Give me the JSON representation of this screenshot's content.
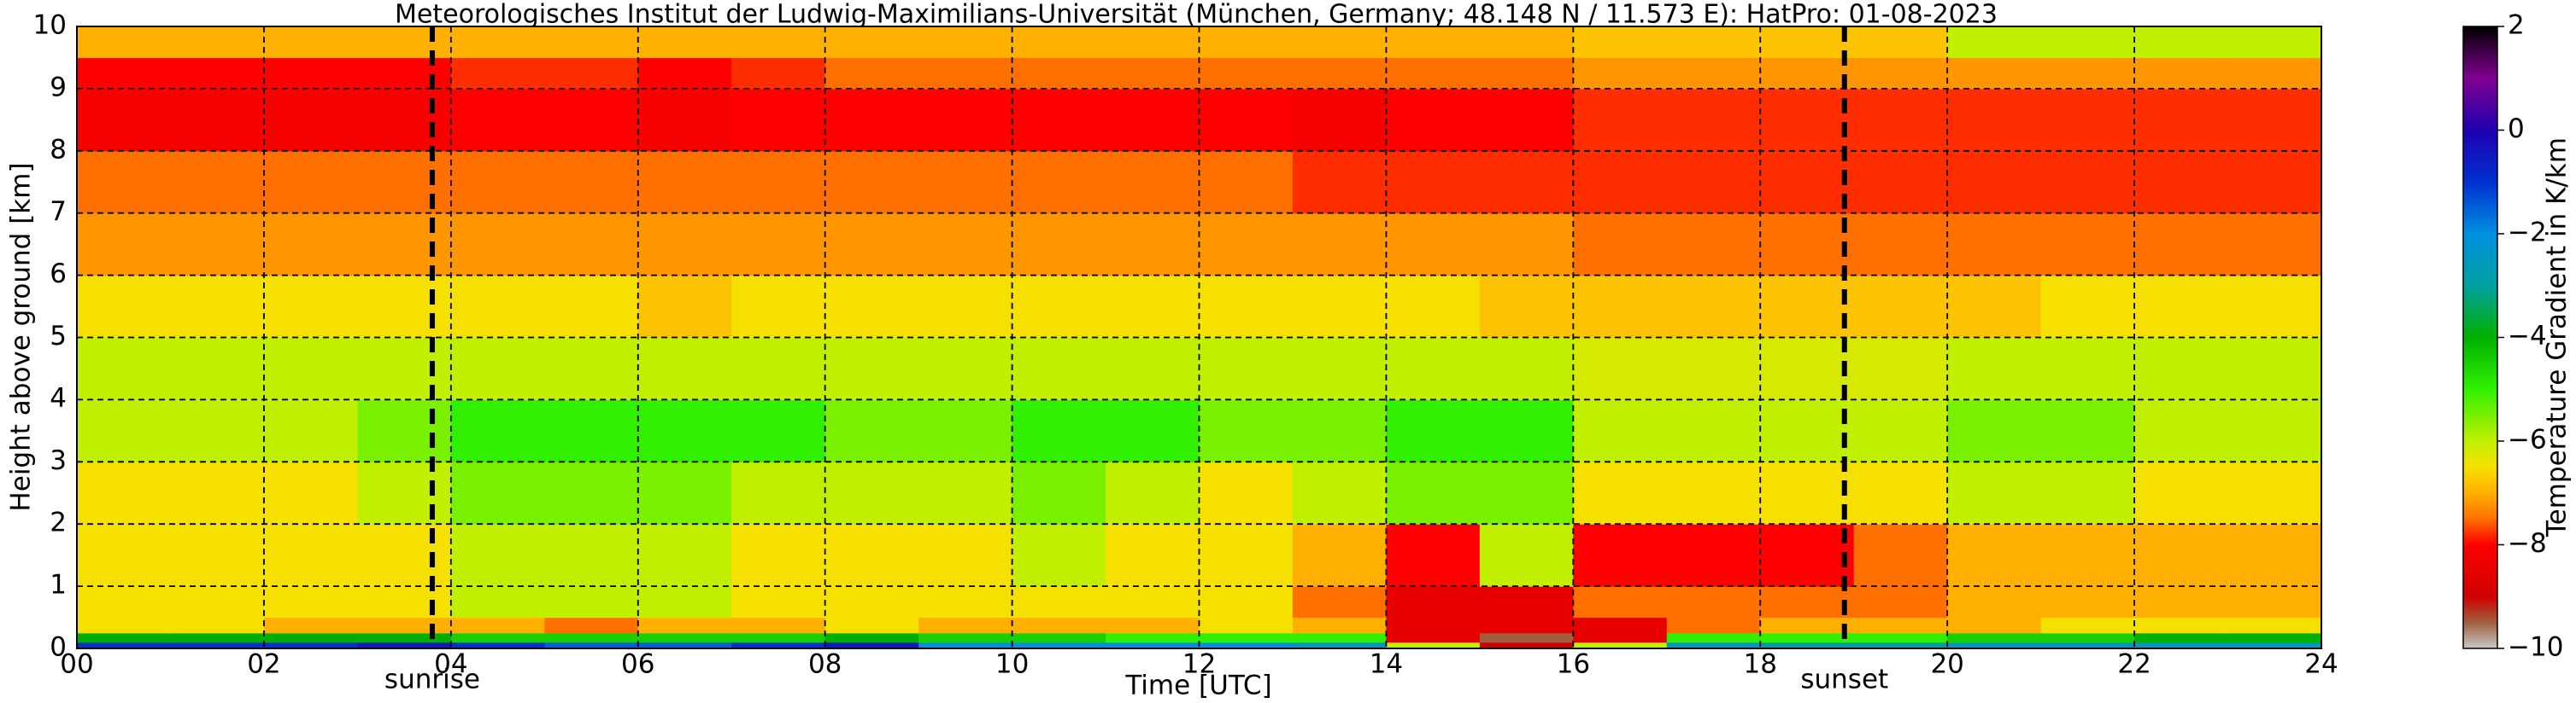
{
  "chart_data": {
    "type": "heatmap",
    "title": "Meteorologisches Institut der Ludwig-Maximilians-Universität (München, Germany; 48.148 N / 11.573 E):    HatPro: 01-08-2023",
    "xlabel": "Time [UTC]",
    "ylabel": "Height above ground [km]",
    "colorbar_label": "Temperature Gradient in K/km",
    "xlim": [
      0,
      24
    ],
    "ylim": [
      0,
      10
    ],
    "clim": [
      -10,
      2
    ],
    "xticks": [
      {
        "value": 0,
        "label": "00"
      },
      {
        "value": 2,
        "label": "02"
      },
      {
        "value": 4,
        "label": "04"
      },
      {
        "value": 6,
        "label": "06"
      },
      {
        "value": 8,
        "label": "08"
      },
      {
        "value": 10,
        "label": "10"
      },
      {
        "value": 12,
        "label": "12"
      },
      {
        "value": 14,
        "label": "14"
      },
      {
        "value": 16,
        "label": "16"
      },
      {
        "value": 18,
        "label": "18"
      },
      {
        "value": 20,
        "label": "20"
      },
      {
        "value": 22,
        "label": "22"
      },
      {
        "value": 24,
        "label": "24"
      }
    ],
    "yticks": [
      0,
      1,
      2,
      3,
      4,
      5,
      6,
      7,
      8,
      9,
      10
    ],
    "cticks": [
      {
        "value": -10,
        "label": "−10"
      },
      {
        "value": -8,
        "label": "−8"
      },
      {
        "value": -6,
        "label": "−6"
      },
      {
        "value": -4,
        "label": "−4"
      },
      {
        "value": -2,
        "label": "−2"
      },
      {
        "value": 0,
        "label": "0"
      },
      {
        "value": 2,
        "label": "2"
      }
    ],
    "grid": true,
    "colormap": [
      [
        -10,
        "#c8c8c8"
      ],
      [
        -9.5,
        "#a06040"
      ],
      [
        -9,
        "#d00000"
      ],
      [
        -8,
        "#ff0000"
      ],
      [
        -7.5,
        "#ff7000"
      ],
      [
        -7,
        "#ffb000"
      ],
      [
        -6.5,
        "#f5e000"
      ],
      [
        -6,
        "#c0f000"
      ],
      [
        -5,
        "#30f000"
      ],
      [
        -4,
        "#00b000"
      ],
      [
        -3,
        "#00a0a0"
      ],
      [
        -2,
        "#0090e0"
      ],
      [
        -1,
        "#0030d0"
      ],
      [
        0,
        "#2000b0"
      ],
      [
        1,
        "#800090"
      ],
      [
        2,
        "#000000"
      ]
    ],
    "annotations": [
      {
        "text": "sunrise",
        "x": 3.8
      },
      {
        "text": "sunset",
        "x": 18.9
      }
    ],
    "xbins": [
      0,
      1,
      2,
      3,
      4,
      5,
      6,
      7,
      8,
      9,
      10,
      11,
      12,
      13,
      14,
      15,
      16,
      17,
      18,
      19,
      20,
      21,
      22,
      23,
      24
    ],
    "ybins": [
      0,
      0.1,
      0.25,
      0.5,
      1,
      2,
      3,
      4,
      5,
      6,
      7,
      8,
      9,
      9.5,
      10
    ],
    "z": [
      [
        -1,
        -1,
        -1,
        -0.5,
        -1,
        -1.5,
        -1.5,
        -1,
        -0.5,
        -2,
        -2,
        -2,
        -2,
        -2.5,
        -6,
        -9,
        -6,
        -2.5,
        -3,
        -3,
        -2.5,
        -2.5,
        -2.5,
        -2.5
      ],
      [
        -4,
        -4,
        -4,
        -4,
        -4.5,
        -4.5,
        -4.5,
        -4.5,
        -4,
        -4.5,
        -4.5,
        -5,
        -5,
        -5,
        -8.5,
        -9.5,
        -8.5,
        -5,
        -5,
        -5,
        -4.5,
        -4.5,
        -4,
        -4
      ],
      [
        -6.5,
        -6.5,
        -7,
        -7,
        -7,
        -7.5,
        -7,
        -7,
        -6.5,
        -7,
        -7,
        -7,
        -6.5,
        -7,
        -8.5,
        -8.5,
        -8.5,
        -7.5,
        -7,
        -7,
        -7,
        -6.5,
        -6.5,
        -6.5
      ],
      [
        -6.5,
        -6.5,
        -6.5,
        -6.5,
        -6,
        -6,
        -6,
        -6.5,
        -6.5,
        -6.5,
        -6.5,
        -6.5,
        -6.5,
        -7.5,
        -8.5,
        -8.5,
        -7.5,
        -7.5,
        -7.5,
        -7.5,
        -7,
        -7,
        -7,
        -7
      ],
      [
        -6.5,
        -6.5,
        -6.5,
        -6.5,
        -6,
        -6,
        -6,
        -6.5,
        -6.5,
        -6.5,
        -6,
        -6.5,
        -6.5,
        -7,
        -8,
        -6,
        -8,
        -8,
        -8,
        -7.5,
        -7,
        -7,
        -7,
        -7
      ],
      [
        -6.5,
        -6.5,
        -6.5,
        -6,
        -5.5,
        -5.5,
        -5.5,
        -6,
        -6,
        -6,
        -5.5,
        -6,
        -6.5,
        -6,
        -5.5,
        -5.5,
        -6.5,
        -6.5,
        -6.5,
        -6.5,
        -6,
        -6,
        -6.5,
        -6.5
      ],
      [
        -6,
        -6,
        -6,
        -5.5,
        -5,
        -5,
        -5,
        -5,
        -5.5,
        -5.5,
        -5,
        -5,
        -5.5,
        -5.5,
        -5,
        -5,
        -6,
        -6,
        -6,
        -6,
        -5.5,
        -5.5,
        -6,
        -6
      ],
      [
        -6,
        -6,
        -6,
        -6,
        -6,
        -6,
        -6,
        -6,
        -6,
        -6,
        -6,
        -6,
        -6,
        -6,
        -6,
        -6,
        -6.2,
        -6.2,
        -6.2,
        -6.2,
        -6,
        -6,
        -6,
        -6
      ],
      [
        -6.5,
        -6.5,
        -6.5,
        -6.5,
        -6.5,
        -6.5,
        -6.8,
        -6.5,
        -6.5,
        -6.5,
        -6.5,
        -6.5,
        -6.5,
        -6.5,
        -6.5,
        -6.8,
        -6.8,
        -6.8,
        -6.8,
        -6.8,
        -6.8,
        -6.5,
        -6.5,
        -6.5
      ],
      [
        -7.2,
        -7.2,
        -7.2,
        -7.2,
        -7.2,
        -7.2,
        -7.2,
        -7.2,
        -7.2,
        -7.2,
        -7.2,
        -7.2,
        -7.2,
        -7.2,
        -7.2,
        -7.2,
        -7.5,
        -7.5,
        -7.5,
        -7.5,
        -7.5,
        -7.5,
        -7.5,
        -7.5
      ],
      [
        -7.5,
        -7.5,
        -7.5,
        -7.5,
        -7.5,
        -7.5,
        -7.5,
        -7.5,
        -7.5,
        -7.5,
        -7.5,
        -7.5,
        -7.5,
        -7.8,
        -7.8,
        -7.8,
        -7.8,
        -7.8,
        -7.8,
        -7.8,
        -7.8,
        -7.8,
        -7.8,
        -7.8
      ],
      [
        -8.2,
        -8.2,
        -8.2,
        -8.2,
        -8,
        -8,
        -8.2,
        -8,
        -8,
        -8,
        -8,
        -8,
        -8,
        -8.2,
        -8,
        -8,
        -7.8,
        -7.8,
        -7.8,
        -7.8,
        -7.8,
        -7.8,
        -7.8,
        -7.8
      ],
      [
        -8,
        -8,
        -8,
        -8,
        -7.8,
        -7.8,
        -8,
        -7.8,
        -7.5,
        -7.5,
        -7.5,
        -7.5,
        -7.5,
        -7.5,
        -7.5,
        -7.5,
        -7.2,
        -7.2,
        -7.2,
        -7.2,
        -7.2,
        -7.2,
        -7.2,
        -7.2
      ],
      [
        -7,
        -7,
        -7,
        -7,
        -7,
        -7,
        -7,
        -7,
        -7,
        -7,
        -7,
        -7,
        -7,
        -7,
        -7,
        -7,
        -6.8,
        -6.8,
        -6.8,
        -6.8,
        -6,
        -6,
        -6,
        -6
      ]
    ]
  }
}
